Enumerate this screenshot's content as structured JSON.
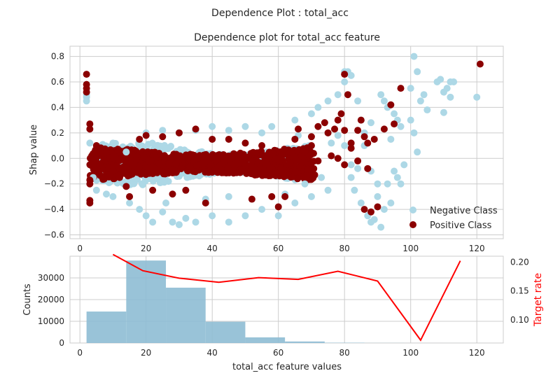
{
  "figure_title": "Dependence Plot : total_acc",
  "chart_data": [
    {
      "type": "scatter",
      "title": "Dependence plot for total_acc feature",
      "xlabel": "",
      "ylabel": "Shap value",
      "xlim": [
        -3,
        128
      ],
      "ylim": [
        -0.63,
        0.88
      ],
      "xticks": [
        "0",
        "20",
        "40",
        "60",
        "80",
        "100",
        "120"
      ],
      "yticks": [
        "−0.6",
        "−0.4",
        "−0.2",
        "0.0",
        "0.2",
        "0.4",
        "0.6",
        "0.8"
      ],
      "grid": true,
      "legend_position": "lower-right",
      "series": [
        {
          "name": "Negative Class",
          "color": "#add8e6",
          "description_points": [
            [
              2,
              0.45
            ],
            [
              2,
              0.48
            ],
            [
              2,
              0.5
            ],
            [
              3,
              0.12
            ],
            [
              4,
              -0.15
            ],
            [
              5,
              -0.25
            ],
            [
              8,
              -0.28
            ],
            [
              10,
              -0.3
            ],
            [
              15,
              -0.35
            ],
            [
              18,
              -0.4
            ],
            [
              20,
              -0.45
            ],
            [
              22,
              -0.5
            ],
            [
              25,
              -0.42
            ],
            [
              28,
              -0.5
            ],
            [
              30,
              -0.52
            ],
            [
              32,
              -0.47
            ],
            [
              35,
              -0.5
            ],
            [
              40,
              -0.45
            ],
            [
              45,
              -0.5
            ],
            [
              50,
              -0.45
            ],
            [
              55,
              -0.4
            ],
            [
              60,
              -0.45
            ],
            [
              65,
              -0.35
            ],
            [
              70,
              -0.3
            ],
            [
              75,
              -0.25
            ],
            [
              20,
              0.2
            ],
            [
              25,
              0.22
            ],
            [
              30,
              0.2
            ],
            [
              35,
              0.22
            ],
            [
              40,
              0.25
            ],
            [
              45,
              0.22
            ],
            [
              50,
              0.25
            ],
            [
              55,
              0.2
            ],
            [
              58,
              0.25
            ],
            [
              65,
              0.3
            ],
            [
              70,
              0.35
            ],
            [
              72,
              0.4
            ],
            [
              75,
              0.45
            ],
            [
              78,
              0.5
            ],
            [
              80,
              0.6
            ],
            [
              80,
              0.68
            ],
            [
              81,
              0.68
            ],
            [
              82,
              0.65
            ],
            [
              84,
              0.45
            ],
            [
              85,
              0.3
            ],
            [
              86,
              0.1
            ],
            [
              88,
              -0.1
            ],
            [
              90,
              -0.2
            ],
            [
              82,
              -0.15
            ],
            [
              83,
              -0.25
            ],
            [
              85,
              -0.35
            ],
            [
              87,
              -0.45
            ],
            [
              88,
              -0.5
            ],
            [
              89,
              -0.48
            ],
            [
              90,
              -0.3
            ],
            [
              91,
              -0.54
            ],
            [
              91,
              0.5
            ],
            [
              92,
              0.45
            ],
            [
              93,
              0.4
            ],
            [
              95,
              0.35
            ],
            [
              96,
              0.3
            ],
            [
              97,
              0.25
            ],
            [
              98,
              -0.05
            ],
            [
              97,
              -0.2
            ],
            [
              100,
              0.55
            ],
            [
              100,
              0.3
            ],
            [
              101,
              0.2
            ],
            [
              102,
              0.05
            ],
            [
              101,
              0.8
            ],
            [
              102,
              0.68
            ],
            [
              103,
              0.45
            ],
            [
              104,
              0.5
            ],
            [
              105,
              0.38
            ],
            [
              108,
              0.6
            ],
            [
              109,
              0.62
            ],
            [
              110,
              0.52
            ],
            [
              110,
              0.36
            ],
            [
              111,
              0.55
            ],
            [
              112,
              0.6
            ],
            [
              112,
              0.48
            ],
            [
              113,
              0.6
            ],
            [
              120,
              0.48
            ],
            [
              94,
              0.15
            ],
            [
              95,
              -0.1
            ],
            [
              96,
              -0.15
            ],
            [
              93,
              -0.2
            ],
            [
              94,
              -0.35
            ],
            [
              92,
              -0.4
            ],
            [
              76,
              0.12
            ],
            [
              78,
              0.18
            ],
            [
              80,
              0.1
            ],
            [
              82,
              -0.05
            ],
            [
              84,
              -0.08
            ],
            [
              86,
              0.2
            ],
            [
              88,
              0.28
            ],
            [
              73,
              -0.15
            ],
            [
              68,
              -0.2
            ],
            [
              66,
              0.18
            ],
            [
              62,
              -0.28
            ],
            [
              45,
              -0.3
            ],
            [
              38,
              -0.32
            ],
            [
              26,
              -0.35
            ],
            [
              14,
              0.05
            ],
            [
              10,
              0.12
            ]
          ]
        },
        {
          "name": "Positive Class",
          "color": "#8b0000",
          "description_points": [
            [
              2,
              0.66
            ],
            [
              2,
              0.58
            ],
            [
              2,
              0.55
            ],
            [
              2,
              0.52
            ],
            [
              3,
              0.27
            ],
            [
              3,
              0.23
            ],
            [
              3,
              -0.17
            ],
            [
              3,
              -0.2
            ],
            [
              3,
              -0.33
            ],
            [
              3,
              -0.35
            ],
            [
              5,
              0.1
            ],
            [
              6,
              -0.05
            ],
            [
              8,
              0.05
            ],
            [
              10,
              -0.1
            ],
            [
              12,
              -0.15
            ],
            [
              14,
              -0.22
            ],
            [
              15,
              -0.3
            ],
            [
              18,
              0.15
            ],
            [
              20,
              0.18
            ],
            [
              22,
              -0.25
            ],
            [
              25,
              0.17
            ],
            [
              28,
              -0.28
            ],
            [
              30,
              0.2
            ],
            [
              32,
              -0.25
            ],
            [
              35,
              0.23
            ],
            [
              38,
              -0.35
            ],
            [
              40,
              0.15
            ],
            [
              45,
              0.15
            ],
            [
              50,
              0.12
            ],
            [
              52,
              -0.32
            ],
            [
              55,
              0.1
            ],
            [
              58,
              -0.3
            ],
            [
              60,
              -0.38
            ],
            [
              62,
              -0.3
            ],
            [
              65,
              0.15
            ],
            [
              66,
              0.23
            ],
            [
              68,
              0.05
            ],
            [
              70,
              0.17
            ],
            [
              72,
              0.25
            ],
            [
              74,
              0.28
            ],
            [
              75,
              0.2
            ],
            [
              77,
              0.23
            ],
            [
              78,
              0.3
            ],
            [
              79,
              0.35
            ],
            [
              80,
              0.66
            ],
            [
              80,
              0.22
            ],
            [
              81,
              0.5
            ],
            [
              82,
              0.08
            ],
            [
              84,
              0.22
            ],
            [
              84,
              -0.02
            ],
            [
              85,
              0.3
            ],
            [
              86,
              0.17
            ],
            [
              86,
              -0.4
            ],
            [
              87,
              -0.08
            ],
            [
              87,
              0.12
            ],
            [
              88,
              -0.42
            ],
            [
              89,
              0.15
            ],
            [
              90,
              -0.38
            ],
            [
              92,
              0.23
            ],
            [
              94,
              0.42
            ],
            [
              95,
              0.27
            ],
            [
              97,
              0.55
            ],
            [
              121,
              0.74
            ],
            [
              68,
              0.05
            ],
            [
              70,
              0.1
            ],
            [
              72,
              -0.02
            ],
            [
              76,
              0.02
            ],
            [
              78,
              0.0
            ],
            [
              80,
              -0.05
            ],
            [
              82,
              0.12
            ]
          ]
        }
      ]
    },
    {
      "type": "bar",
      "title": "",
      "xlabel": "total_acc feature values",
      "ylabel": "Counts",
      "y2label": "Target rate",
      "xlim": [
        -3,
        128
      ],
      "ylim": [
        0,
        40000
      ],
      "y2lim": [
        0.06,
        0.21
      ],
      "xticks": [
        "0",
        "20",
        "40",
        "60",
        "80",
        "100",
        "120"
      ],
      "yticks": [
        "0",
        "10000",
        "20000",
        "30000"
      ],
      "y2ticks": [
        "0.10",
        "0.15",
        "0.20"
      ],
      "grid": true,
      "bins": [
        {
          "x0": 2,
          "x1": 14,
          "count": 14500
        },
        {
          "x0": 14,
          "x1": 26,
          "count": 38000
        },
        {
          "x0": 26,
          "x1": 38,
          "count": 25500
        },
        {
          "x0": 38,
          "x1": 50,
          "count": 9800
        },
        {
          "x0": 50,
          "x1": 62,
          "count": 2600
        },
        {
          "x0": 62,
          "x1": 74,
          "count": 700
        },
        {
          "x0": 74,
          "x1": 86,
          "count": 150
        },
        {
          "x0": 86,
          "x1": 98,
          "count": 40
        },
        {
          "x0": 98,
          "x1": 110,
          "count": 10
        },
        {
          "x0": 110,
          "x1": 122,
          "count": 5
        }
      ],
      "bar_color": "#8ebdd4",
      "line_color": "#ff0000",
      "target_rate": {
        "x": [
          10,
          19,
          30,
          42,
          54,
          66,
          78,
          90,
          103,
          115
        ],
        "y": [
          0.213,
          0.185,
          0.172,
          0.165,
          0.173,
          0.17,
          0.184,
          0.167,
          0.065,
          0.202
        ]
      }
    }
  ]
}
